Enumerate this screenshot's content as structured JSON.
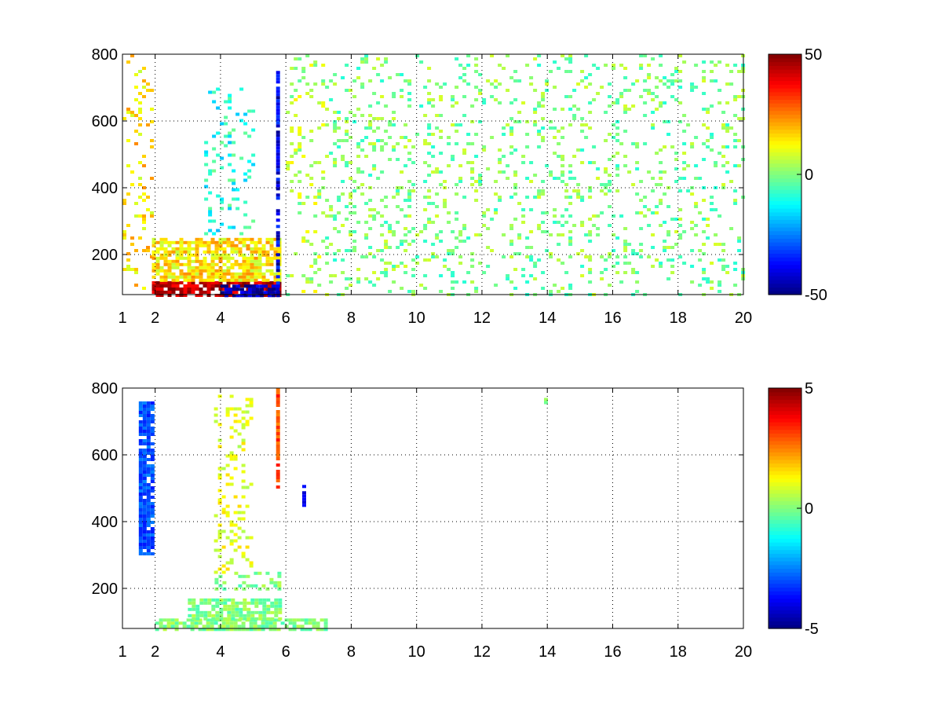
{
  "chart_data": [
    {
      "type": "heatmap",
      "title": "",
      "xlabel": "",
      "ylabel": "",
      "x_ticks": [
        "1",
        "2",
        "4",
        "6",
        "8",
        "10",
        "12",
        "14",
        "16",
        "18",
        "20"
      ],
      "x_tick_values": [
        1,
        2,
        4,
        6,
        8,
        10,
        12,
        14,
        16,
        18,
        20
      ],
      "y_ticks": [
        "200",
        "400",
        "600",
        "800"
      ],
      "y_tick_values": [
        200,
        400,
        600,
        800
      ],
      "xlim": [
        1,
        20
      ],
      "ylim": [
        80,
        800
      ],
      "grid": true,
      "grid_style": "dotted",
      "colormap": "jet",
      "clim": [
        -50,
        50
      ],
      "colorbar_ticks": [
        "-50",
        "0",
        "50"
      ],
      "colorbar_tick_values": [
        -50,
        0,
        50
      ],
      "colorbar_position": "right",
      "regions": [
        {
          "x": [
            1.0,
            1.9
          ],
          "y": [
            80,
            800
          ],
          "value": 15,
          "pattern": "sparse vertical streaks"
        },
        {
          "x": [
            1.9,
            5.8
          ],
          "y": [
            80,
            120
          ],
          "value": 45,
          "pattern": "strong positive band near bottom"
        },
        {
          "x": [
            4.0,
            5.8
          ],
          "y": [
            80,
            110
          ],
          "value": -45,
          "pattern": "strong negative band near bottom"
        },
        {
          "x": [
            1.9,
            5.8
          ],
          "y": [
            120,
            250
          ],
          "value": 15,
          "pattern": "dense mixed"
        },
        {
          "x": [
            3.5,
            5.0
          ],
          "y": [
            250,
            700
          ],
          "value": -10,
          "pattern": "curved cyan arcs"
        },
        {
          "x": [
            5.7,
            5.8
          ],
          "y": [
            80,
            750
          ],
          "value": -40,
          "pattern": "vertical blue line"
        },
        {
          "x": [
            6.0,
            7.2
          ],
          "y": [
            80,
            800
          ],
          "value": 5,
          "pattern": "sparse"
        },
        {
          "x": [
            7.2,
            20.0
          ],
          "y": [
            80,
            800
          ],
          "value": 0,
          "pattern": "sparse scattered green/yellow cells"
        }
      ]
    },
    {
      "type": "heatmap",
      "title": "",
      "xlabel": "",
      "ylabel": "",
      "x_ticks": [
        "1",
        "2",
        "4",
        "6",
        "8",
        "10",
        "12",
        "14",
        "16",
        "18",
        "20"
      ],
      "x_tick_values": [
        1,
        2,
        4,
        6,
        8,
        10,
        12,
        14,
        16,
        18,
        20
      ],
      "y_ticks": [
        "200",
        "400",
        "600",
        "800"
      ],
      "y_tick_values": [
        200,
        400,
        600,
        800
      ],
      "xlim": [
        1,
        20
      ],
      "ylim": [
        80,
        800
      ],
      "grid": true,
      "grid_style": "dotted",
      "colormap": "jet",
      "clim": [
        -5,
        5
      ],
      "colorbar_ticks": [
        "-5",
        "0",
        "5"
      ],
      "colorbar_tick_values": [
        -5,
        0,
        5
      ],
      "colorbar_position": "right",
      "regions": [
        {
          "x": [
            2.0,
            7.2
          ],
          "y": [
            80,
            110
          ],
          "value": 0,
          "pattern": "dense green band"
        },
        {
          "x": [
            3.0,
            5.8
          ],
          "y": [
            110,
            170
          ],
          "value": 0,
          "pattern": "dense green streaks"
        },
        {
          "x": [
            3.7,
            5.8
          ],
          "y": [
            200,
            250
          ],
          "value": 0,
          "pattern": "green streaks"
        },
        {
          "x": [
            3.8,
            5.0
          ],
          "y": [
            250,
            780
          ],
          "value": 1,
          "pattern": "sparse yellow-green arcs"
        },
        {
          "x": [
            1.5,
            1.9
          ],
          "y": [
            300,
            760
          ],
          "value": -3,
          "pattern": "sparse mixed dashes"
        },
        {
          "x": [
            5.7,
            5.8
          ],
          "y": [
            500,
            800
          ],
          "value": 3,
          "pattern": "vertical mixed line"
        },
        {
          "x": [
            6.5,
            6.5
          ],
          "y": [
            450,
            510
          ],
          "value": -4,
          "pattern": "blue dash"
        },
        {
          "x": [
            13.9,
            14.0
          ],
          "y": [
            760,
            780
          ],
          "value": 0,
          "pattern": "single point"
        }
      ]
    }
  ],
  "colors": {
    "background": "#ffffff",
    "axis": "#000000",
    "grid": "#000000"
  }
}
